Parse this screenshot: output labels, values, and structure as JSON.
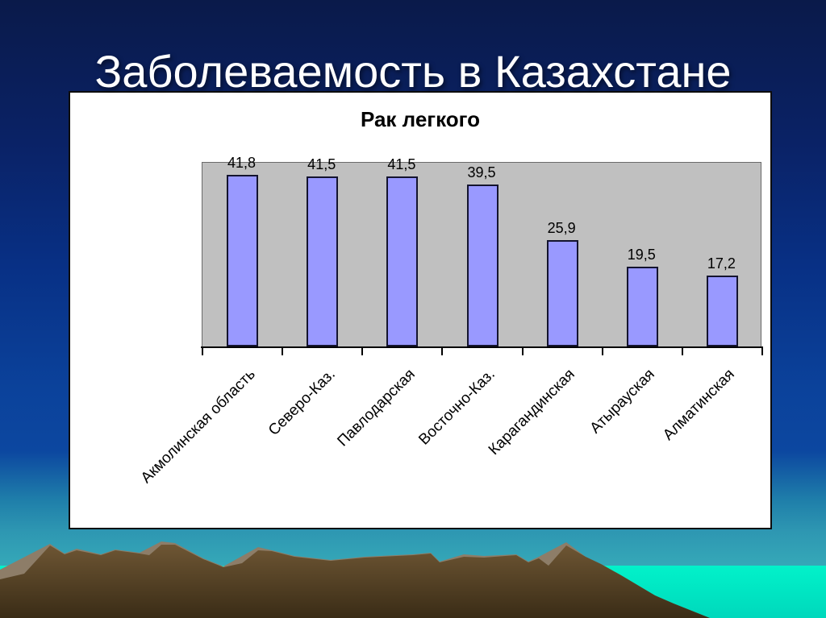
{
  "slide": {
    "title": "Заболеваемость в Казахстане"
  },
  "chart_data": {
    "type": "bar",
    "title": "Рак легкого",
    "categories": [
      "Акмолинская область",
      "Северо-Каз.",
      "Павлодарская",
      "Восточно-Каз.",
      "Карагандинская",
      "Атырауская",
      "Алматинская"
    ],
    "values": [
      41.8,
      41.5,
      41.5,
      39.5,
      25.9,
      19.5,
      17.2
    ],
    "value_labels": [
      "41,8",
      "41,5",
      "41,5",
      "39,5",
      "25,9",
      "19,5",
      "17,2"
    ],
    "xlabel": "",
    "ylabel": "",
    "ylim": [
      0,
      45
    ],
    "grid": false,
    "legend": "none",
    "bar_color": "#9999ff",
    "bar_border_color": "#14142e",
    "plot_background": "#c0c0c0"
  },
  "palette": {
    "background_top": "#0a1a4a",
    "background_mid_blue": "#0b429b",
    "background_teal": "#35a8b8",
    "horizon_band_bright": "#02f2ca",
    "mountain_light": "#8d7d68",
    "mountain_dark_top": "#6e5634",
    "mountain_dark_bottom": "#3a2c16",
    "title_color": "#ffffff",
    "panel_background": "#ffffff"
  }
}
